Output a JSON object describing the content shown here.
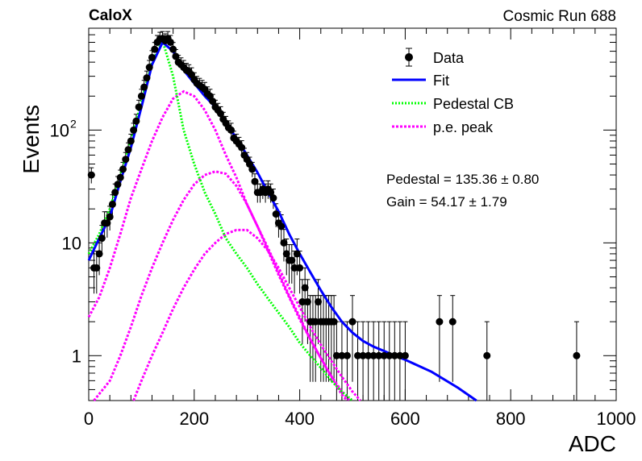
{
  "chart_data": {
    "type": "scatter",
    "title_left": "CaloX",
    "title_right": "Cosmic Run 688",
    "xlabel": "ADC",
    "ylabel": "Events",
    "xlim": [
      0,
      1000
    ],
    "ylim": [
      0.4,
      800
    ],
    "yscale": "log",
    "xticks": [
      0,
      200,
      400,
      600,
      800,
      1000
    ],
    "xtick_labels": [
      "0",
      "200",
      "400",
      "600",
      "800",
      "1000"
    ],
    "yticks": [
      1,
      10,
      100
    ],
    "ytick_labels": [
      "1",
      "10",
      "10^2"
    ],
    "legend": {
      "placement": "top-right",
      "entries": [
        {
          "label": "Data",
          "kind": "marker",
          "color": "#000000"
        },
        {
          "label": "Fit",
          "kind": "line",
          "color": "#0000ff"
        },
        {
          "label": "Pedestal CB",
          "kind": "dotted",
          "color": "#00ff00"
        },
        {
          "label": "p.e. peak",
          "kind": "dotted",
          "color": "#ff00ff"
        }
      ]
    },
    "annotations": [
      "Pedestal = 135.36 ± 0.80",
      "Gain = 54.17 ± 1.79"
    ],
    "data_points": [
      [
        5,
        40
      ],
      [
        10,
        6
      ],
      [
        15,
        6
      ],
      [
        20,
        8
      ],
      [
        25,
        11
      ],
      [
        30,
        15
      ],
      [
        35,
        15
      ],
      [
        40,
        17
      ],
      [
        45,
        22
      ],
      [
        50,
        28
      ],
      [
        55,
        33
      ],
      [
        60,
        38
      ],
      [
        65,
        45
      ],
      [
        70,
        55
      ],
      [
        75,
        67
      ],
      [
        80,
        80
      ],
      [
        85,
        100
      ],
      [
        90,
        120
      ],
      [
        95,
        160
      ],
      [
        100,
        200
      ],
      [
        105,
        240
      ],
      [
        110,
        290
      ],
      [
        115,
        360
      ],
      [
        120,
        440
      ],
      [
        125,
        520
      ],
      [
        130,
        600
      ],
      [
        135,
        640
      ],
      [
        140,
        650
      ],
      [
        145,
        620
      ],
      [
        150,
        650
      ],
      [
        155,
        600
      ],
      [
        160,
        520
      ],
      [
        165,
        450
      ],
      [
        170,
        400
      ],
      [
        175,
        380
      ],
      [
        180,
        360
      ],
      [
        185,
        340
      ],
      [
        190,
        330
      ],
      [
        195,
        310
      ],
      [
        200,
        280
      ],
      [
        205,
        260
      ],
      [
        210,
        250
      ],
      [
        215,
        240
      ],
      [
        220,
        230
      ],
      [
        225,
        210
      ],
      [
        230,
        200
      ],
      [
        235,
        180
      ],
      [
        240,
        160
      ],
      [
        245,
        150
      ],
      [
        250,
        140
      ],
      [
        255,
        125
      ],
      [
        260,
        115
      ],
      [
        265,
        105
      ],
      [
        270,
        100
      ],
      [
        275,
        85
      ],
      [
        280,
        80
      ],
      [
        285,
        75
      ],
      [
        290,
        70
      ],
      [
        295,
        60
      ],
      [
        300,
        55
      ],
      [
        305,
        50
      ],
      [
        310,
        45
      ],
      [
        315,
        35
      ],
      [
        320,
        28
      ],
      [
        325,
        28
      ],
      [
        330,
        30
      ],
      [
        335,
        28
      ],
      [
        340,
        30
      ],
      [
        345,
        28
      ],
      [
        350,
        25
      ],
      [
        355,
        18
      ],
      [
        360,
        15
      ],
      [
        365,
        14
      ],
      [
        370,
        10
      ],
      [
        375,
        8
      ],
      [
        380,
        7
      ],
      [
        385,
        7
      ],
      [
        390,
        6
      ],
      [
        395,
        8
      ],
      [
        400,
        6
      ],
      [
        405,
        3
      ],
      [
        410,
        4
      ],
      [
        415,
        3
      ],
      [
        420,
        2
      ],
      [
        425,
        2
      ],
      [
        430,
        2
      ],
      [
        435,
        3
      ],
      [
        440,
        2
      ],
      [
        445,
        2
      ],
      [
        450,
        2
      ],
      [
        455,
        2
      ],
      [
        460,
        2
      ],
      [
        465,
        2
      ],
      [
        470,
        1
      ],
      [
        480,
        1
      ],
      [
        490,
        1
      ],
      [
        500,
        2
      ],
      [
        510,
        1
      ],
      [
        520,
        1
      ],
      [
        530,
        1
      ],
      [
        540,
        1
      ],
      [
        550,
        1
      ],
      [
        560,
        1
      ],
      [
        570,
        1
      ],
      [
        580,
        1
      ],
      [
        590,
        1
      ],
      [
        600,
        1
      ],
      [
        665,
        2
      ],
      [
        690,
        2
      ],
      [
        755,
        1
      ],
      [
        925,
        1
      ]
    ],
    "fit_curve": [
      [
        0,
        7
      ],
      [
        20,
        11
      ],
      [
        40,
        17
      ],
      [
        60,
        35
      ],
      [
        80,
        70
      ],
      [
        100,
        160
      ],
      [
        120,
        380
      ],
      [
        140,
        600
      ],
      [
        160,
        500
      ],
      [
        180,
        340
      ],
      [
        200,
        260
      ],
      [
        220,
        200
      ],
      [
        240,
        160
      ],
      [
        260,
        115
      ],
      [
        280,
        85
      ],
      [
        300,
        60
      ],
      [
        320,
        42
      ],
      [
        340,
        28
      ],
      [
        360,
        19
      ],
      [
        380,
        12
      ],
      [
        400,
        8
      ],
      [
        420,
        5.5
      ],
      [
        440,
        3.8
      ],
      [
        460,
        2.7
      ],
      [
        480,
        2.0
      ],
      [
        500,
        1.6
      ],
      [
        520,
        1.35
      ],
      [
        540,
        1.2
      ],
      [
        560,
        1.1
      ],
      [
        580,
        1.0
      ],
      [
        600,
        0.92
      ],
      [
        650,
        0.72
      ],
      [
        700,
        0.52
      ],
      [
        735,
        0.4
      ]
    ],
    "pedestal_curve": [
      [
        0,
        8
      ],
      [
        20,
        12
      ],
      [
        40,
        20
      ],
      [
        60,
        40
      ],
      [
        80,
        80
      ],
      [
        100,
        180
      ],
      [
        120,
        400
      ],
      [
        140,
        620
      ],
      [
        160,
        300
      ],
      [
        180,
        100
      ],
      [
        200,
        50
      ],
      [
        220,
        28
      ],
      [
        240,
        18
      ],
      [
        260,
        11
      ],
      [
        280,
        8
      ],
      [
        300,
        6
      ],
      [
        320,
        4.3
      ],
      [
        340,
        3.2
      ],
      [
        360,
        2.4
      ],
      [
        380,
        1.8
      ],
      [
        400,
        1.3
      ],
      [
        420,
        1.0
      ],
      [
        440,
        0.78
      ],
      [
        460,
        0.6
      ],
      [
        480,
        0.48
      ],
      [
        500,
        0.4
      ]
    ],
    "pe_peaks": [
      [
        [
          0,
          2.2
        ],
        [
          20,
          3.3
        ],
        [
          40,
          6
        ],
        [
          60,
          12
        ],
        [
          80,
          25
        ],
        [
          100,
          45
        ],
        [
          120,
          80
        ],
        [
          140,
          130
        ],
        [
          160,
          190
        ],
        [
          180,
          220
        ],
        [
          200,
          200
        ],
        [
          220,
          150
        ],
        [
          240,
          100
        ],
        [
          260,
          60
        ],
        [
          280,
          38
        ],
        [
          300,
          22
        ],
        [
          320,
          14
        ],
        [
          340,
          8.5
        ],
        [
          360,
          5.2
        ],
        [
          380,
          3.3
        ],
        [
          400,
          2.1
        ],
        [
          420,
          1.4
        ],
        [
          440,
          0.95
        ],
        [
          460,
          0.65
        ],
        [
          480,
          0.45
        ],
        [
          490,
          0.4
        ]
      ],
      [
        [
          10,
          0.4
        ],
        [
          40,
          0.6
        ],
        [
          60,
          1.0
        ],
        [
          80,
          1.8
        ],
        [
          100,
          3.4
        ],
        [
          120,
          6
        ],
        [
          140,
          10
        ],
        [
          160,
          16
        ],
        [
          180,
          24
        ],
        [
          200,
          33
        ],
        [
          220,
          40
        ],
        [
          240,
          43
        ],
        [
          260,
          41
        ],
        [
          280,
          32
        ],
        [
          300,
          22
        ],
        [
          320,
          14
        ],
        [
          340,
          9
        ],
        [
          360,
          5.5
        ],
        [
          380,
          3.4
        ],
        [
          400,
          2.2
        ],
        [
          420,
          1.4
        ],
        [
          440,
          0.95
        ],
        [
          460,
          0.66
        ],
        [
          480,
          0.48
        ],
        [
          495,
          0.4
        ]
      ],
      [
        [
          85,
          0.4
        ],
        [
          100,
          0.6
        ],
        [
          120,
          1.0
        ],
        [
          140,
          1.6
        ],
        [
          160,
          2.6
        ],
        [
          180,
          4.0
        ],
        [
          200,
          5.8
        ],
        [
          220,
          8
        ],
        [
          240,
          10
        ],
        [
          260,
          12
        ],
        [
          280,
          13
        ],
        [
          300,
          13
        ],
        [
          320,
          11
        ],
        [
          340,
          8.5
        ],
        [
          360,
          6
        ],
        [
          380,
          4
        ],
        [
          400,
          2.7
        ],
        [
          420,
          1.8
        ],
        [
          440,
          1.25
        ],
        [
          460,
          0.9
        ],
        [
          480,
          0.65
        ],
        [
          500,
          0.48
        ],
        [
          515,
          0.4
        ]
      ]
    ]
  }
}
